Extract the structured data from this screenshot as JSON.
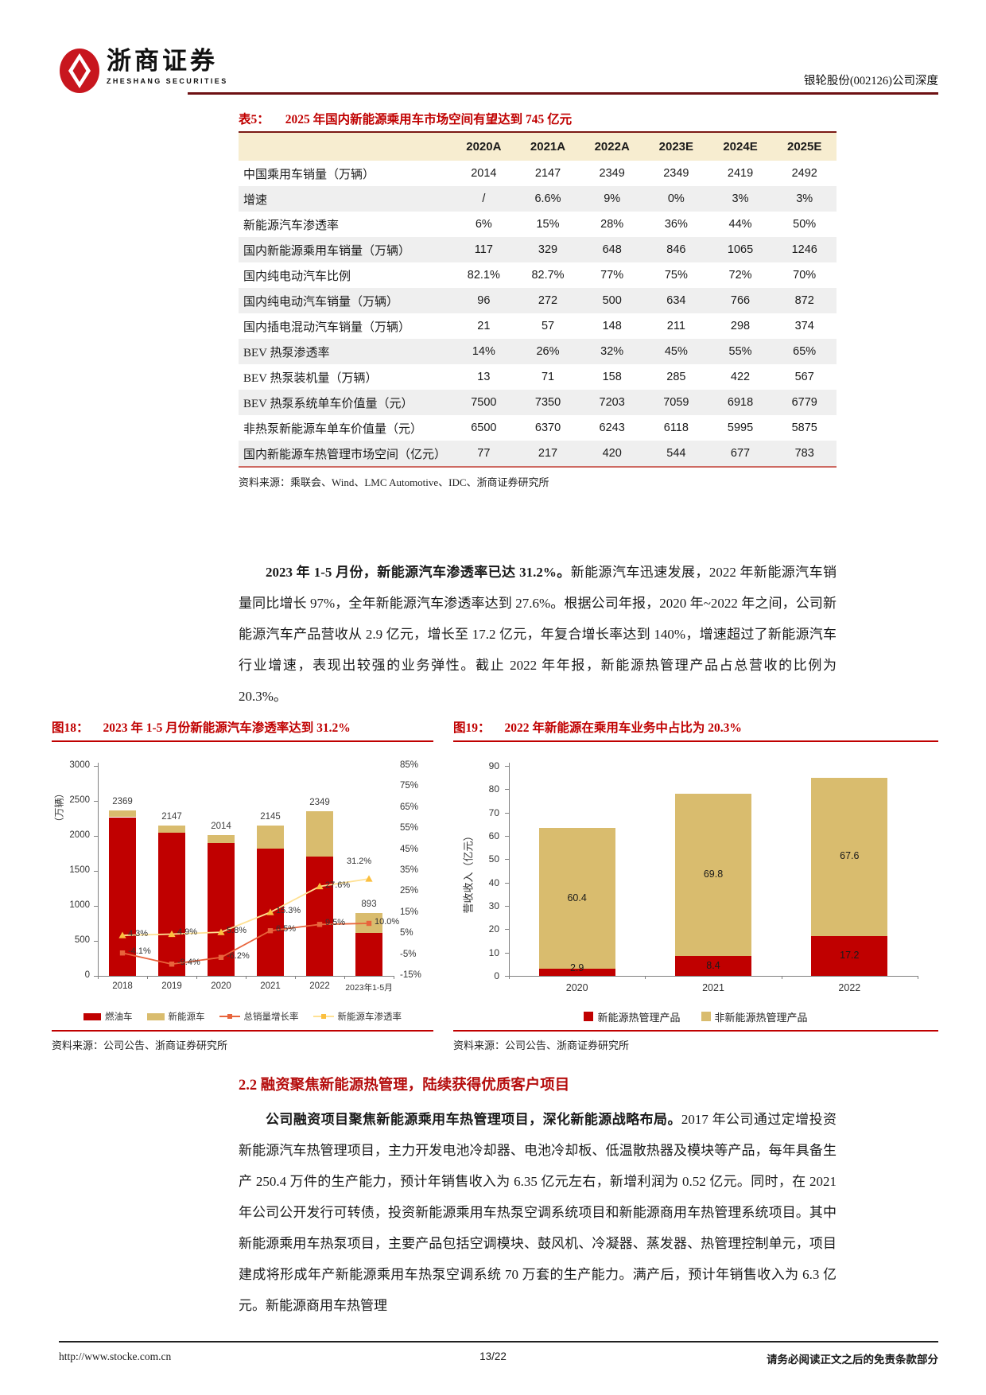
{
  "header": {
    "brand_cn": "浙商证券",
    "brand_en": "ZHESHANG SECURITIES",
    "doc_title": "银轮股份(002126)公司深度"
  },
  "table5": {
    "label": "表5：",
    "title": "2025 年国内新能源乘用车市场空间有望达到 745 亿元",
    "columns": [
      "2020A",
      "2021A",
      "2022A",
      "2023E",
      "2024E",
      "2025E"
    ],
    "rows": [
      {
        "label": "中国乘用车销量（万辆）",
        "values": [
          "2014",
          "2147",
          "2349",
          "2349",
          "2419",
          "2492"
        ]
      },
      {
        "label": "增速",
        "values": [
          "/",
          "6.6%",
          "9%",
          "0%",
          "3%",
          "3%"
        ]
      },
      {
        "label": "新能源汽车渗透率",
        "values": [
          "6%",
          "15%",
          "28%",
          "36%",
          "44%",
          "50%"
        ]
      },
      {
        "label": "国内新能源乘用车销量（万辆）",
        "values": [
          "117",
          "329",
          "648",
          "846",
          "1065",
          "1246"
        ]
      },
      {
        "label": "国内纯电动汽车比例",
        "values": [
          "82.1%",
          "82.7%",
          "77%",
          "75%",
          "72%",
          "70%"
        ]
      },
      {
        "label": "国内纯电动汽车销量（万辆）",
        "values": [
          "96",
          "272",
          "500",
          "634",
          "766",
          "872"
        ]
      },
      {
        "label": "国内插电混动汽车销量（万辆）",
        "values": [
          "21",
          "57",
          "148",
          "211",
          "298",
          "374"
        ]
      },
      {
        "label": "BEV 热泵渗透率",
        "values": [
          "14%",
          "26%",
          "32%",
          "45%",
          "55%",
          "65%"
        ]
      },
      {
        "label": "BEV 热泵装机量（万辆）",
        "values": [
          "13",
          "71",
          "158",
          "285",
          "422",
          "567"
        ]
      },
      {
        "label": "BEV 热泵系统单车价值量（元）",
        "values": [
          "7500",
          "7350",
          "7203",
          "7059",
          "6918",
          "6779"
        ]
      },
      {
        "label": "非热泵新能源车单车价值量（元）",
        "values": [
          "6500",
          "6370",
          "6243",
          "6118",
          "5995",
          "5875"
        ]
      },
      {
        "label": "国内新能源车热管理市场空间（亿元）",
        "values": [
          "77",
          "217",
          "420",
          "544",
          "677",
          "783"
        ]
      }
    ],
    "source": "资料来源：乘联会、Wind、LMC Automotive、IDC、浙商证券研究所"
  },
  "paragraph1": {
    "bold": "2023 年 1-5 月份，新能源汽车渗透率已达 31.2%。",
    "rest": "新能源汽车迅速发展，2022 年新能源汽车销量同比增长 97%，全年新能源汽车渗透率达到 27.6%。根据公司年报，2020 年~2022 年之间，公司新能源汽车产品营收从 2.9 亿元，增长至 17.2 亿元，年复合增长率达到 140%，增速超过了新能源汽车行业增速，表现出较强的业务弹性。截止 2022 年年报，新能源热管理产品占总营收的比例为 20.3%。"
  },
  "figure18": {
    "label": "图18：",
    "title": "2023 年 1-5 月份新能源汽车渗透率达到 31.2%",
    "source": "资料来源：公司公告、浙商证券研究所"
  },
  "figure19": {
    "label": "图19：",
    "title": "2022 年新能源在乘用车业务中占比为 20.3%",
    "source": "资料来源：公司公告、浙商证券研究所"
  },
  "chart_data": [
    {
      "type": "bar+line",
      "title": "2023年1-5月份新能源汽车渗透率达到31.2%",
      "categories": [
        "2018",
        "2019",
        "2020",
        "2021",
        "2022",
        "2023年1-5月"
      ],
      "ylabel_left": "（万辆）",
      "left_axis": {
        "min": 0,
        "max": 3000,
        "step": 500
      },
      "right_axis": {
        "min": -15,
        "max": 85,
        "step": 10,
        "suffix": "%"
      },
      "bar_totals": [
        "2369",
        "2147",
        "2014",
        "2145",
        "2349",
        "893"
      ],
      "series": [
        {
          "name": "燃油车",
          "type": "bar",
          "color": "#c00000",
          "values": [
            2267,
            2042,
            1897,
            1817,
            1701,
            614
          ]
        },
        {
          "name": "新能源车",
          "type": "bar",
          "color": "#d9bc6e",
          "values": [
            102,
            105,
            117,
            328,
            648,
            279
          ]
        },
        {
          "name": "总销量增长率",
          "type": "line",
          "axis": "right",
          "color": "#e8643c",
          "marker": "square",
          "marker_color": "#e8643c",
          "values": [
            -4.1,
            -9.4,
            -6.2,
            6.5,
            9.5,
            10.0
          ],
          "labels": [
            "-4.1%",
            "-9.4%",
            "-6.2%",
            "6.5%",
            "9.5%",
            "10.0%"
          ]
        },
        {
          "name": "新能源车渗透率",
          "type": "line",
          "axis": "right",
          "color": "#ffe193",
          "marker": "triangle",
          "marker_color": "#fbbf3f",
          "values": [
            4.3,
            4.9,
            5.8,
            15.3,
            27.6,
            31.2
          ],
          "labels": [
            "4.3%",
            "4.9%",
            "5.8%",
            "15.3%",
            "27.6%",
            "31.2%"
          ]
        }
      ],
      "legend_position": "bottom",
      "grid": false
    },
    {
      "type": "bar",
      "title": "2022年新能源在乘用车业务中占比为20.3%",
      "categories": [
        "2020",
        "2021",
        "2022"
      ],
      "ylabel": "营收收入（亿元）",
      "left_axis": {
        "min": 0,
        "max": 90,
        "step": 10
      },
      "series": [
        {
          "name": "新能源热管理产品",
          "color": "#c00000",
          "values": [
            2.9,
            8.4,
            17.2
          ]
        },
        {
          "name": "非新能源热管理产品",
          "color": "#d9bc6e",
          "values": [
            60.4,
            69.8,
            67.6
          ]
        }
      ],
      "legend_position": "bottom",
      "grid": false
    }
  ],
  "section22": {
    "title": "2.2 融资聚焦新能源热管理，陆续获得优质客户项目",
    "para_bold": "公司融资项目聚焦新能源乘用车热管理项目，深化新能源战略布局。",
    "para_rest": "2017 年公司通过定增投资新能源汽车热管理项目，主力开发电池冷却器、电池冷却板、低温散热器及模块等产品，每年具备生产 250.4 万件的生产能力，预计年销售收入为 6.35 亿元左右，新增利润为 0.52 亿元。同时，在 2021 年公司公开发行可转债，投资新能源乘用车热泵空调系统项目和新能源商用车热管理系统项目。其中新能源乘用车热泵项目，主要产品包括空调模块、鼓风机、冷凝器、蒸发器、热管理控制单元，项目建成将形成年产新能源乘用车热泵空调系统 70 万套的生产能力。满产后，预计年销售收入为 6.3 亿元。新能源商用车热管理"
  },
  "footer": {
    "url": "http://www.stocke.com.cn",
    "page": "13/22",
    "disclaimer": "请务必阅读正文之后的免责条款部分"
  }
}
